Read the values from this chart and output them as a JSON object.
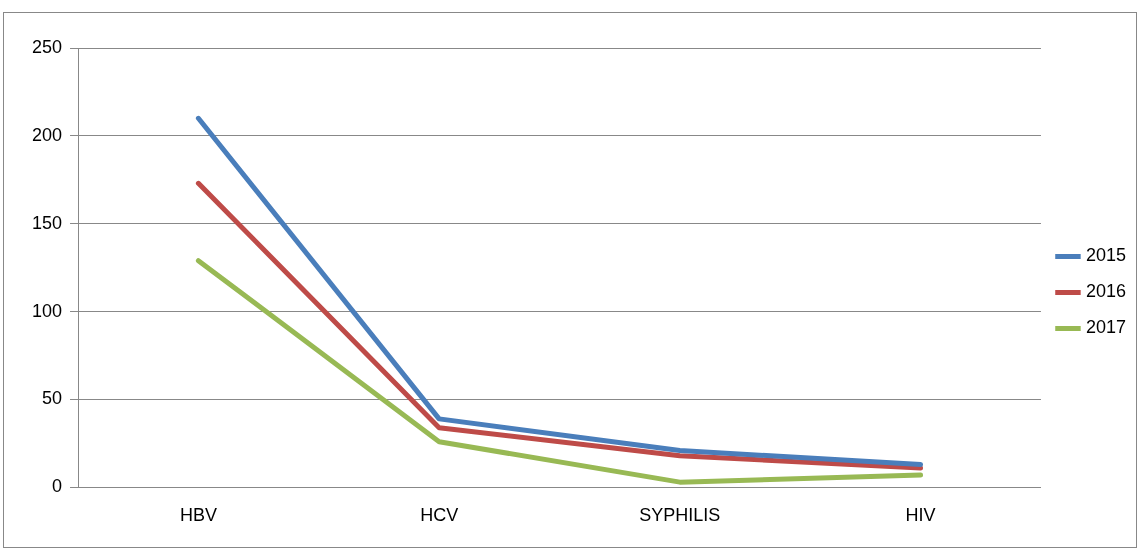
{
  "chart_data": {
    "type": "line",
    "categories": [
      "HBV",
      "HCV",
      "SYPHILIS",
      "HIV"
    ],
    "series": [
      {
        "name": "2015",
        "color": "#4a7ebb",
        "values": [
          210,
          39,
          21,
          13
        ]
      },
      {
        "name": "2016",
        "color": "#be4b48",
        "values": [
          173,
          34,
          18,
          11
        ]
      },
      {
        "name": "2017",
        "color": "#98b954",
        "values": [
          129,
          26,
          3,
          7
        ]
      }
    ],
    "ylim": [
      0,
      250
    ],
    "yticks": [
      0,
      50,
      100,
      150,
      200,
      250
    ],
    "grid": "y",
    "legend": "right",
    "marker": "none"
  }
}
